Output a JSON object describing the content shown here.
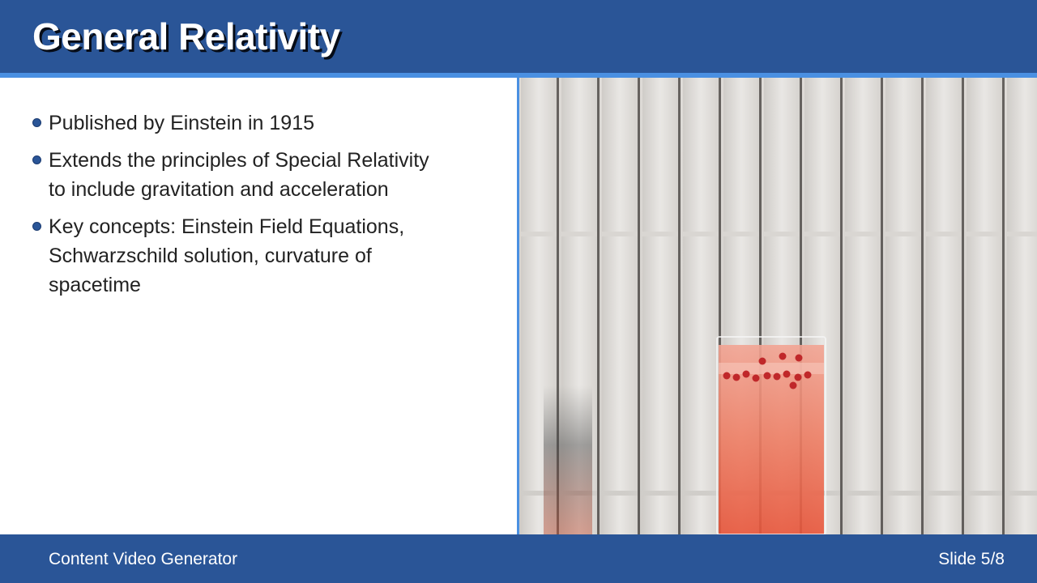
{
  "slide": {
    "title": "General Relativity",
    "bullets": [
      "Published by Einstein in 1915",
      "Extends the principles of Special Relativity to include gravitation and acceleration",
      "Key concepts: Einstein Field Equations, Schwarzschild solution, curvature of spacetime"
    ]
  },
  "footer": {
    "brand": "Content Video Generator",
    "page_indicator": "Slide 5/8"
  },
  "colors": {
    "header_bg": "#2a5597",
    "accent_rule": "#4a90e2",
    "body_text": "#222222",
    "bullet_dot": "#2a5597"
  }
}
